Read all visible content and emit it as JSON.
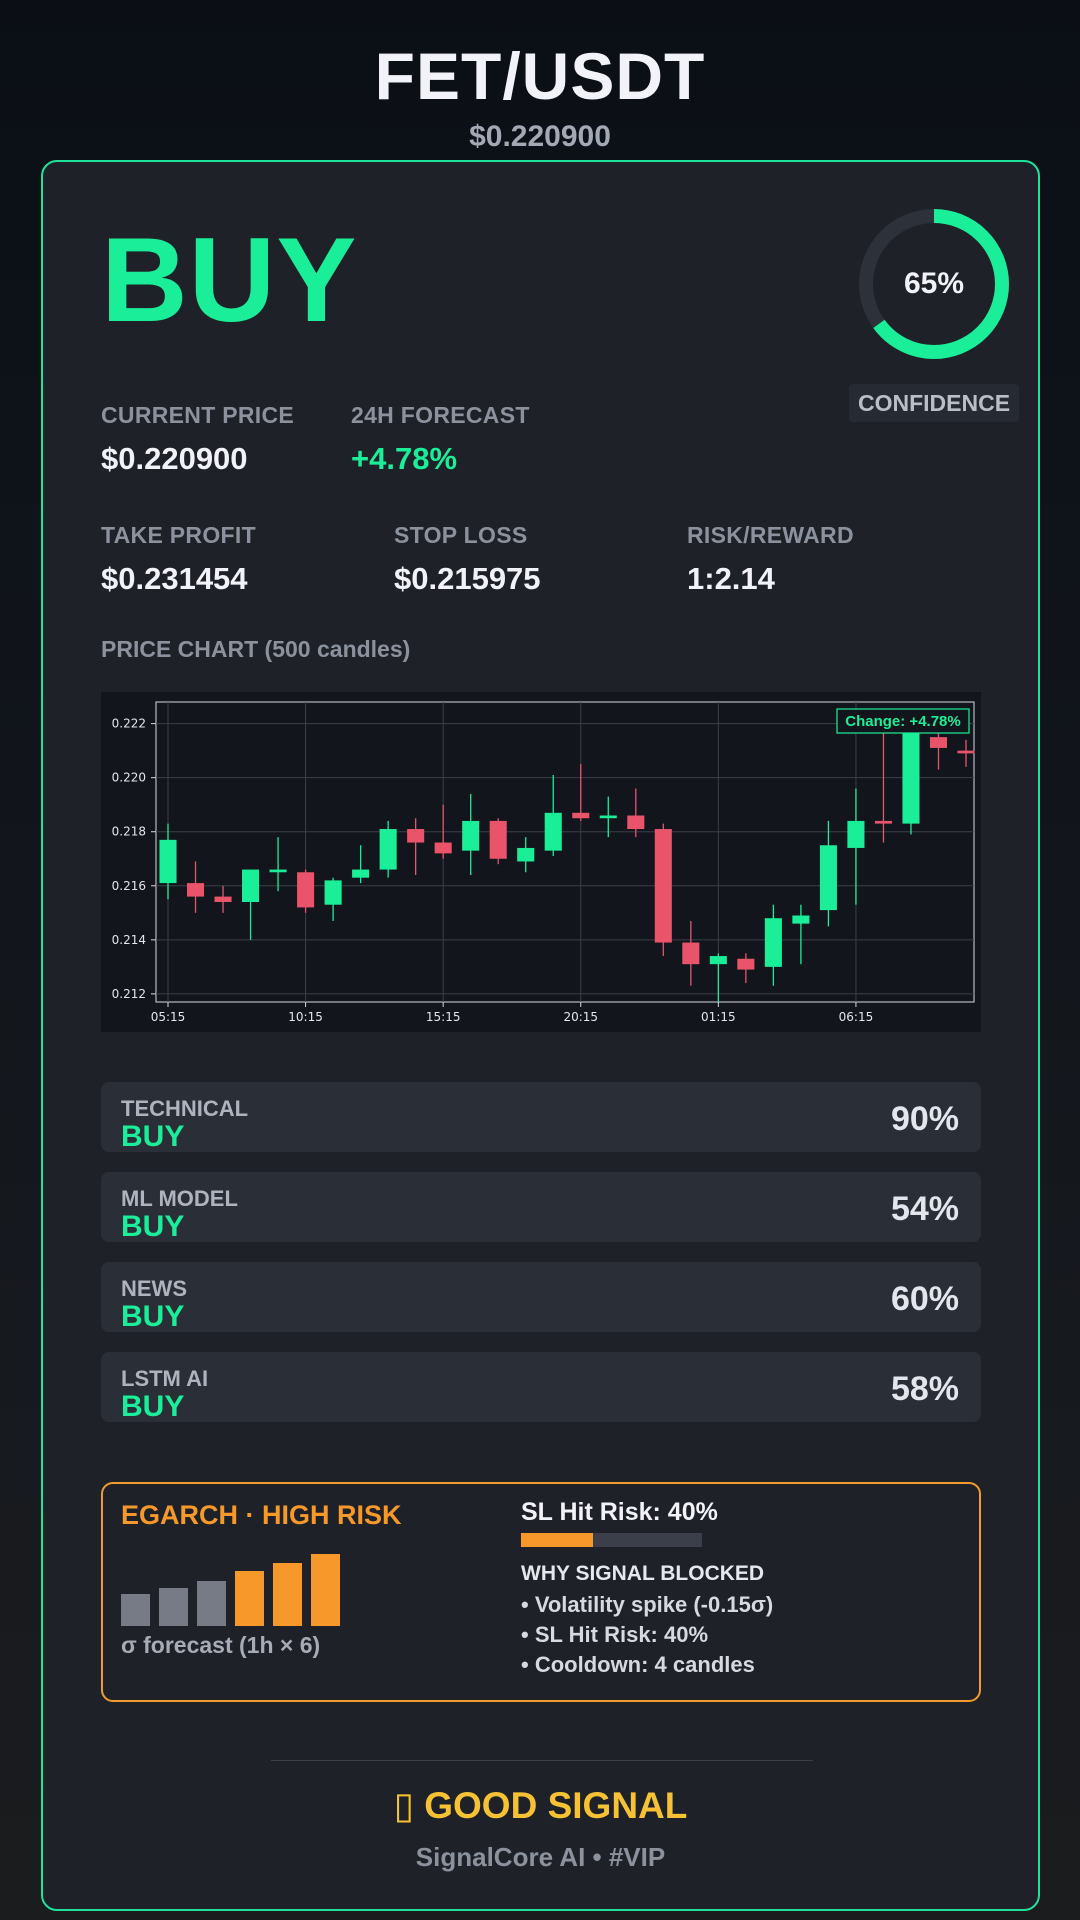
{
  "header": {
    "pair": "FET/USDT",
    "price": "$0.220900"
  },
  "signal": {
    "action": "BUY",
    "color": "#1bee98"
  },
  "confidence": {
    "value": 0.65,
    "label": "65%",
    "badge": "CONFIDENCE"
  },
  "metrics": {
    "current_price": {
      "label": "CURRENT PRICE",
      "value": "$0.220900"
    },
    "forecast_24h": {
      "label": "24H FORECAST",
      "value": "+4.78%"
    },
    "take_profit": {
      "label": "TAKE PROFIT",
      "value": "$0.231454"
    },
    "stop_loss": {
      "label": "STOP LOSS",
      "value": "$0.215975"
    },
    "risk_reward": {
      "label": "RISK/REWARD",
      "value": "1:2.14"
    }
  },
  "chart_title": "PRICE CHART (500 candles)",
  "chart_data": {
    "type": "candlestick",
    "annotation": "Change: +4.78%",
    "y_ticks": [
      "0.212",
      "0.214",
      "0.216",
      "0.218",
      "0.220",
      "0.222"
    ],
    "ylim": [
      0.2117,
      0.2228
    ],
    "x_ticks": [
      {
        "label": "05:15",
        "index": 0
      },
      {
        "label": "10:15",
        "index": 5
      },
      {
        "label": "15:15",
        "index": 10
      },
      {
        "label": "20:15",
        "index": 15
      },
      {
        "label": "01:15",
        "index": 20
      },
      {
        "label": "06:15",
        "index": 25
      }
    ],
    "candles": [
      {
        "o": 0.2161,
        "h": 0.2183,
        "l": 0.2155,
        "c": 0.2177
      },
      {
        "o": 0.2161,
        "h": 0.2169,
        "l": 0.215,
        "c": 0.2156
      },
      {
        "o": 0.2156,
        "h": 0.216,
        "l": 0.215,
        "c": 0.2154
      },
      {
        "o": 0.2154,
        "h": 0.2166,
        "l": 0.214,
        "c": 0.2166
      },
      {
        "o": 0.2165,
        "h": 0.2178,
        "l": 0.2158,
        "c": 0.2166
      },
      {
        "o": 0.2165,
        "h": 0.2166,
        "l": 0.215,
        "c": 0.2152
      },
      {
        "o": 0.2153,
        "h": 0.2163,
        "l": 0.2147,
        "c": 0.2162
      },
      {
        "o": 0.2163,
        "h": 0.2175,
        "l": 0.2161,
        "c": 0.2166
      },
      {
        "o": 0.2166,
        "h": 0.2184,
        "l": 0.2163,
        "c": 0.2181
      },
      {
        "o": 0.2181,
        "h": 0.2185,
        "l": 0.2164,
        "c": 0.2176
      },
      {
        "o": 0.2176,
        "h": 0.219,
        "l": 0.217,
        "c": 0.2172
      },
      {
        "o": 0.2173,
        "h": 0.2194,
        "l": 0.2164,
        "c": 0.2184
      },
      {
        "o": 0.2184,
        "h": 0.2185,
        "l": 0.2168,
        "c": 0.217
      },
      {
        "o": 0.2169,
        "h": 0.2178,
        "l": 0.2165,
        "c": 0.2174
      },
      {
        "o": 0.2173,
        "h": 0.2201,
        "l": 0.2171,
        "c": 0.2187
      },
      {
        "o": 0.2187,
        "h": 0.2205,
        "l": 0.2184,
        "c": 0.2185
      },
      {
        "o": 0.2185,
        "h": 0.2193,
        "l": 0.2178,
        "c": 0.2186
      },
      {
        "o": 0.2186,
        "h": 0.2196,
        "l": 0.2178,
        "c": 0.2181
      },
      {
        "o": 0.2181,
        "h": 0.2183,
        "l": 0.2134,
        "c": 0.2139
      },
      {
        "o": 0.2139,
        "h": 0.2147,
        "l": 0.2123,
        "c": 0.2131
      },
      {
        "o": 0.2131,
        "h": 0.2135,
        "l": 0.2117,
        "c": 0.2134
      },
      {
        "o": 0.2133,
        "h": 0.2135,
        "l": 0.2124,
        "c": 0.2129
      },
      {
        "o": 0.213,
        "h": 0.2153,
        "l": 0.2123,
        "c": 0.2148
      },
      {
        "o": 0.2146,
        "h": 0.2153,
        "l": 0.2131,
        "c": 0.2149
      },
      {
        "o": 0.2151,
        "h": 0.2184,
        "l": 0.2145,
        "c": 0.2175
      },
      {
        "o": 0.2174,
        "h": 0.2196,
        "l": 0.2153,
        "c": 0.2184
      },
      {
        "o": 0.2184,
        "h": 0.2217,
        "l": 0.2176,
        "c": 0.2183
      },
      {
        "o": 0.2183,
        "h": 0.2224,
        "l": 0.2179,
        "c": 0.2218
      },
      {
        "o": 0.2215,
        "h": 0.2221,
        "l": 0.2203,
        "c": 0.2211
      },
      {
        "o": 0.221,
        "h": 0.2214,
        "l": 0.2204,
        "c": 0.2209
      }
    ]
  },
  "sources": [
    {
      "name": "TECHNICAL",
      "signal": "BUY",
      "percent": "90%"
    },
    {
      "name": "ML MODEL",
      "signal": "BUY",
      "percent": "54%"
    },
    {
      "name": "NEWS",
      "signal": "BUY",
      "percent": "60%"
    },
    {
      "name": "LSTM AI",
      "signal": "BUY",
      "percent": "58%"
    }
  ],
  "risk": {
    "title": "EGARCH · HIGH RISK",
    "sigma_label": "σ forecast (1h × 6)",
    "sigma_forecast": [
      0.45,
      0.53,
      0.63,
      0.76,
      0.88,
      1.0
    ],
    "sigma_colors": [
      "#767b86",
      "#767b86",
      "#767b86",
      "#f7982b",
      "#f7982b",
      "#f7982b"
    ],
    "sl_hit_label": "SL Hit Risk: 40%",
    "sl_hit_value": 0.4,
    "why_title": "WHY SIGNAL BLOCKED",
    "reasons": [
      "• Volatility spike (-0.15σ)",
      "• SL Hit Risk: 40%",
      "• Cooldown: 4 candles"
    ]
  },
  "footer": {
    "verdict": "▯ GOOD SIGNAL",
    "brand": "SignalCore AI • #VIP"
  },
  "colors": {
    "up": "#1bee98",
    "down": "#e9546b",
    "accent_border": "#1fe39a",
    "risk": "#f7982b"
  }
}
